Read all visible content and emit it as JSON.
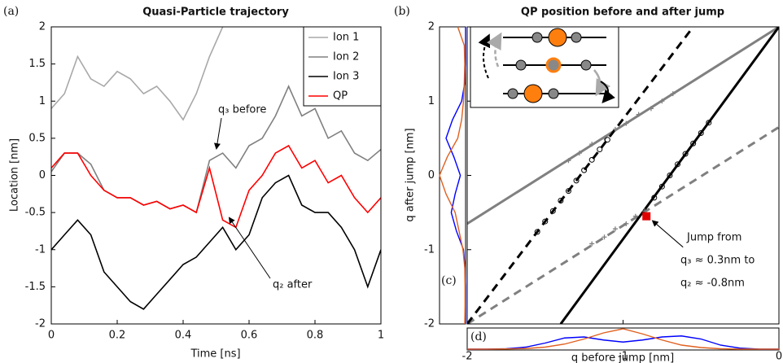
{
  "panel_labels": [
    "(a)",
    "(b)",
    "(c)",
    "(d)"
  ],
  "chart_data": [
    {
      "type": "line",
      "title": "Quasi-Particle trajectory",
      "xlabel": "Time [ns]",
      "ylabel": "Location [nm]",
      "x": [
        0,
        0.04,
        0.08,
        0.12,
        0.16,
        0.2,
        0.24,
        0.28,
        0.32,
        0.36,
        0.4,
        0.44,
        0.48,
        0.52,
        0.56,
        0.6,
        0.64,
        0.68,
        0.72,
        0.76,
        0.8,
        0.84,
        0.88,
        0.92,
        0.96,
        1
      ],
      "xlim": [
        0,
        1
      ],
      "ylim": [
        -2,
        2
      ],
      "xticks": [
        0,
        0.2,
        0.4,
        0.6,
        0.8,
        1
      ],
      "yticks": [
        -2,
        -1.5,
        -1,
        -0.5,
        0,
        0.5,
        1,
        1.5,
        2
      ],
      "legend": "top-right",
      "series": [
        {
          "name": "Ion 1",
          "color": "#a8a8a8",
          "values": [
            0.9,
            1.1,
            1.6,
            1.3,
            1.2,
            1.4,
            1.3,
            1.1,
            1.2,
            1.0,
            0.75,
            1.1,
            1.6,
            2.0,
            null,
            null,
            null,
            null,
            null,
            null,
            null,
            null,
            null,
            null,
            null,
            null
          ]
        },
        {
          "name": "Ion 2",
          "color": "#808080",
          "values": [
            0.05,
            0.3,
            0.3,
            0.15,
            -0.2,
            -0.3,
            -0.3,
            -0.4,
            -0.35,
            -0.45,
            -0.4,
            -0.5,
            0.2,
            0.3,
            0.1,
            0.4,
            0.5,
            0.8,
            1.2,
            0.8,
            0.9,
            0.5,
            0.6,
            0.3,
            0.2,
            0.35
          ]
        },
        {
          "name": "Ion 3",
          "color": "#000000",
          "values": [
            -1.0,
            -0.8,
            -0.6,
            -0.8,
            -1.3,
            -1.5,
            -1.7,
            -1.8,
            -1.6,
            -1.4,
            -1.2,
            -1.1,
            -0.9,
            -0.7,
            -1.0,
            -0.8,
            -0.3,
            -0.1,
            0.0,
            -0.4,
            -0.5,
            -0.5,
            -0.7,
            -1.0,
            -1.5,
            -1.0
          ]
        },
        {
          "name": "QP",
          "color": "#ff0000",
          "values": [
            0.1,
            0.3,
            0.3,
            0.0,
            -0.2,
            -0.3,
            -0.3,
            -0.4,
            -0.35,
            -0.45,
            -0.4,
            -0.5,
            0.1,
            -0.6,
            -0.7,
            -0.2,
            0.0,
            0.3,
            0.4,
            0.1,
            0.2,
            -0.1,
            0.0,
            -0.3,
            -0.5,
            -0.3
          ]
        }
      ],
      "annotations": [
        "q₃ before",
        "q₂ after"
      ]
    },
    {
      "type": "scatter",
      "title": "QP position before and after jump",
      "xlabel": "q before jump [nm]",
      "ylabel": "q after jump [nm]",
      "xlim": [
        -2,
        0
      ],
      "ylim": [
        -2,
        2
      ],
      "xticks": [
        -2,
        -1,
        0
      ],
      "yticks": [
        -2,
        -1,
        0,
        1,
        2
      ],
      "lines": [
        {
          "color": "#808080",
          "dash": false,
          "x": [
            -2,
            0
          ],
          "y": [
            -0.65,
            2
          ]
        },
        {
          "color": "#808080",
          "dash": true,
          "x": [
            -2,
            0
          ],
          "y": [
            -2,
            0.65
          ]
        },
        {
          "color": "#000000",
          "dash": true,
          "x": [
            -2,
            -0.55
          ],
          "y": [
            -2,
            2
          ]
        },
        {
          "color": "#000000",
          "dash": false,
          "x": [
            -1.4,
            0
          ],
          "y": [
            -2,
            2
          ]
        }
      ],
      "series": [
        {
          "marker": "cross",
          "color": "#808080",
          "x": [
            -1.35,
            -1.28,
            -1.2,
            -1.12,
            -1.05,
            -0.98,
            -0.9,
            -0.82,
            -0.75,
            -0.68,
            -1.2,
            -1.12,
            -1.05,
            -0.98,
            -0.92,
            -0.86
          ],
          "y": [
            0.2,
            0.3,
            0.42,
            0.5,
            0.62,
            0.7,
            0.82,
            0.9,
            1.0,
            1.1,
            -0.92,
            -0.83,
            -0.72,
            -0.65,
            -0.55,
            -0.48
          ]
        },
        {
          "marker": "circle",
          "color": "#000000",
          "x": [
            -1.55,
            -1.5,
            -1.45,
            -1.4,
            -1.35,
            -1.3,
            -1.25,
            -1.2,
            -1.15,
            -1.1,
            -0.8,
            -0.75,
            -0.7,
            -0.65,
            -0.6,
            -0.55,
            -0.5,
            -0.45
          ],
          "y": [
            -0.76,
            -0.62,
            -0.48,
            -0.34,
            -0.21,
            -0.07,
            0.07,
            0.21,
            0.35,
            0.48,
            -0.3,
            -0.15,
            0.0,
            0.15,
            0.29,
            0.43,
            0.57,
            0.71
          ]
        }
      ],
      "marker": {
        "color": "#e00000",
        "x": -0.85,
        "y": -0.55
      },
      "annotations": [
        "Jump from",
        "q₃ ≈ 0.3nm to",
        "q₂ ≈ -0.8nm"
      ]
    },
    {
      "type": "density",
      "orientation": "vertical",
      "xlim": [
        0,
        1
      ],
      "ylim": [
        -2,
        2
      ],
      "y": [
        -2,
        -1.75,
        -1.5,
        -1.25,
        -1,
        -0.75,
        -0.5,
        -0.25,
        0,
        0.25,
        0.5,
        0.75,
        1,
        1.25,
        1.5,
        1.75,
        2
      ],
      "series": [
        {
          "color": "#0000ff",
          "values": [
            0,
            0,
            0,
            0.02,
            0.08,
            0.35,
            0.55,
            0.4,
            0.2,
            0.45,
            0.75,
            0.5,
            0.15,
            0.03,
            0,
            0,
            0
          ]
        },
        {
          "color": "#e06020",
          "values": [
            0.03,
            0.02,
            0.02,
            0.03,
            0.1,
            0.25,
            0.4,
            0.75,
            1.0,
            0.7,
            0.3,
            0.15,
            0.08,
            0.05,
            0.03,
            0.05,
            0.3
          ]
        }
      ]
    },
    {
      "type": "density",
      "orientation": "horizontal",
      "xlim": [
        -2,
        0
      ],
      "ylim": [
        0,
        1
      ],
      "x": [
        -2,
        -1.875,
        -1.75,
        -1.625,
        -1.5,
        -1.375,
        -1.25,
        -1.125,
        -1,
        -0.875,
        -0.75,
        -0.625,
        -0.5,
        -0.375,
        -0.25,
        -0.125,
        0
      ],
      "series": [
        {
          "color": "#0000ff",
          "values": [
            0,
            0,
            0.02,
            0.1,
            0.3,
            0.55,
            0.6,
            0.45,
            0.35,
            0.45,
            0.6,
            0.65,
            0.5,
            0.2,
            0.05,
            0,
            0
          ]
        },
        {
          "color": "#e06020",
          "values": [
            0,
            0,
            0.01,
            0.03,
            0.1,
            0.25,
            0.5,
            0.8,
            1.0,
            0.75,
            0.45,
            0.2,
            0.08,
            0.02,
            0,
            0,
            0
          ]
        }
      ]
    }
  ]
}
